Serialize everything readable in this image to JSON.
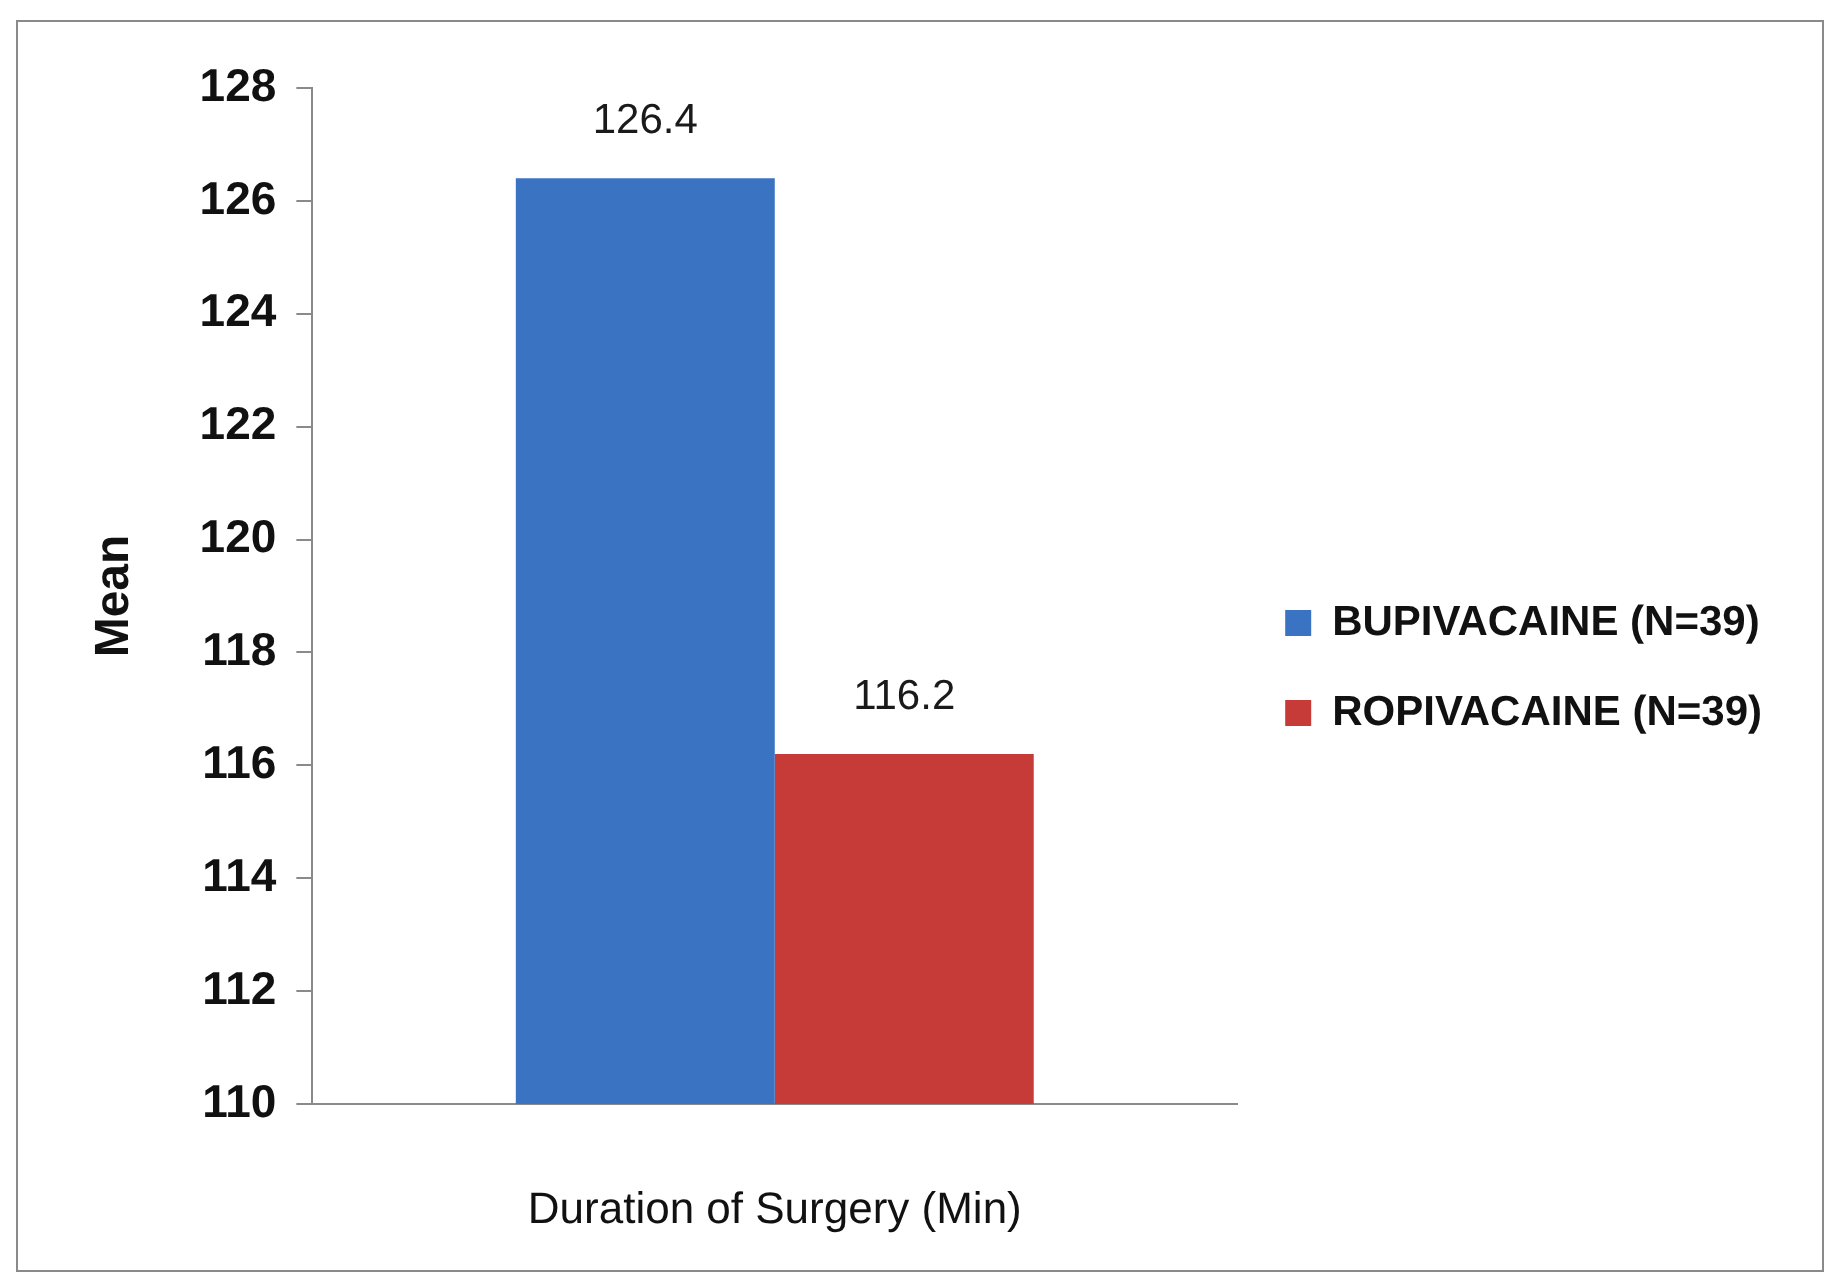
{
  "chart_data": {
    "type": "bar",
    "ylabel": "Mean",
    "categories": [
      "Duration of Surgery (Min)"
    ],
    "series": [
      {
        "name": "BUPIVACAINE (N=39)",
        "color": "#3a73c2",
        "values": [
          126.4
        ]
      },
      {
        "name": "ROPIVACAINE (N=39)",
        "color": "#c63a37",
        "values": [
          116.2
        ]
      }
    ],
    "ylim": [
      110,
      128
    ],
    "yticks": [
      110,
      112,
      114,
      116,
      118,
      120,
      122,
      124,
      126,
      128
    ],
    "legend": "right",
    "data_labels": true
  }
}
